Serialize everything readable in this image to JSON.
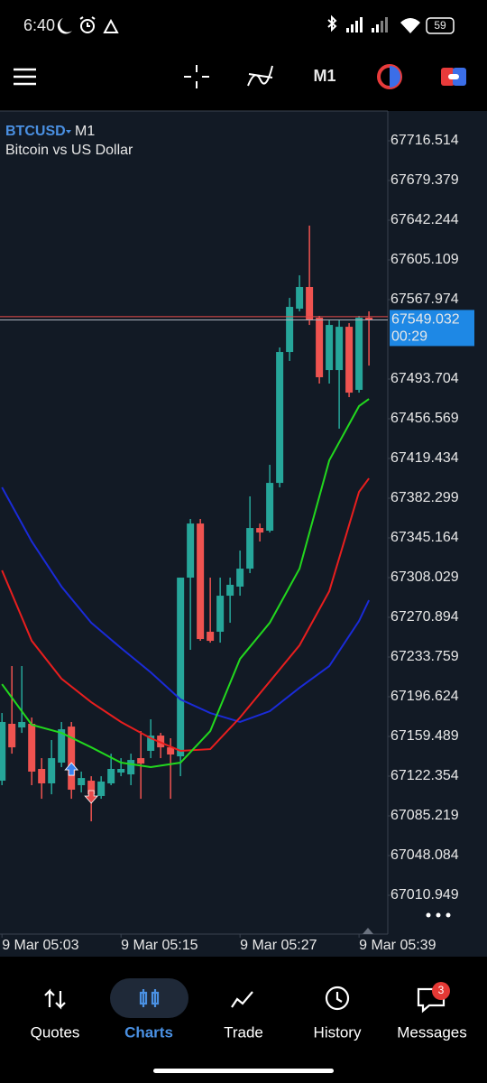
{
  "status_bar": {
    "time": "6:40",
    "battery": 59
  },
  "toolbar": {
    "timeframe": "M1"
  },
  "chart_data": {
    "type": "candlestick",
    "symbol": "BTCUSD",
    "timeframe": "M1",
    "description": "Bitcoin vs US Dollar",
    "up_color": "#26a69a",
    "down_color": "#ef5350",
    "open": [
      67118.1,
      67171.3,
      67167.9,
      67171.3,
      67129.1,
      67115.6,
      67135.0,
      67168.7,
      67113.9,
      67118.1,
      67103.8,
      67115.6,
      67125.7,
      67124.0,
      67139.2,
      67146.0,
      67160.3,
      67149.3,
      67140.9,
      67308.0,
      67358.6,
      67257.4,
      67257.4,
      67291.1,
      67299.6,
      67316.4,
      67354.4,
      67351.9,
      67396.6,
      67519.0,
      67559.5,
      67579.8,
      67551.1,
      67502.1,
      67502.1,
      67542.6,
      67483.6,
      67551.1
    ],
    "high": [
      67181.4,
      67225.3,
      67225.3,
      67177.2,
      67139.2,
      67156.1,
      67173.0,
      67173.0,
      67126.6,
      67122.3,
      67122.3,
      67143.4,
      67139.2,
      67143.4,
      67164.5,
      67175.5,
      67162.8,
      67157.8,
      67308.0,
      67362.9,
      67362.9,
      67308.0,
      67308.0,
      67308.0,
      67333.3,
      67384.0,
      67358.6,
      67413.5,
      67523.2,
      67569.6,
      67590.7,
      67637.2,
      67552.8,
      67548.5,
      67548.5,
      67546.0,
      67552.8,
      67557.0
    ],
    "low": [
      67113.9,
      67143.4,
      67162.8,
      67113.9,
      67101.2,
      67105.4,
      67130.8,
      67101.2,
      67107.1,
      67080.1,
      67101.2,
      67113.9,
      67122.3,
      67113.9,
      67101.2,
      67139.2,
      67139.2,
      67101.2,
      67122.3,
      67240.5,
      67248.9,
      67247.2,
      67247.2,
      67265.8,
      67291.1,
      67312.2,
      67341.8,
      67350.2,
      67392.4,
      67510.6,
      67557.0,
      67544.3,
      67489.5,
      67489.5,
      67447.3,
      67476.8,
      67481.0,
      67506.3
    ],
    "close": [
      67173.0,
      67149.3,
      67173.0,
      67126.6,
      67115.6,
      67139.2,
      67166.2,
      67109.7,
      67120.6,
      67105.4,
      67117.3,
      67129.1,
      67129.1,
      67137.5,
      67134.1,
      67160.3,
      67149.3,
      67142.6,
      67308.0,
      67358.6,
      67250.6,
      67248.9,
      67291.1,
      67301.3,
      67316.4,
      67354.4,
      67350.2,
      67396.6,
      67519.0,
      67561.2,
      67579.8,
      67548.5,
      67495.4,
      67544.3,
      67542.6,
      67481.0,
      67551.1,
      67549.0
    ],
    "series": [
      {
        "color": "#1a2bd8",
        "x": [
          0,
          3,
          6,
          9,
          12,
          15,
          18,
          21,
          24,
          27,
          30,
          33,
          36,
          37
        ],
        "values": [
          67392.4,
          67341.8,
          67299.6,
          67265.8,
          67242.2,
          67219.4,
          67194.1,
          67181.4,
          67173.0,
          67183.1,
          67205.0,
          67225.3,
          67267.5,
          67286.9
        ]
      },
      {
        "color": "#e81e1e",
        "x": [
          0,
          3,
          6,
          9,
          12,
          15,
          18,
          21,
          24,
          27,
          30,
          33,
          36,
          37
        ],
        "values": [
          67314.8,
          67248.9,
          67213.5,
          67191.5,
          67173.0,
          67157.8,
          67146.0,
          67147.6,
          67177.2,
          67210.9,
          67244.7,
          67295.3,
          67388.2,
          67400.8
        ]
      },
      {
        "color": "#22d81e",
        "x": [
          0,
          3,
          6,
          9,
          12,
          15,
          18,
          21,
          24,
          27,
          30,
          33,
          36,
          37
        ],
        "values": [
          67208.4,
          67170.4,
          67162.8,
          67149.3,
          67135.0,
          67130.8,
          67135.0,
          67164.5,
          67232.0,
          67265.8,
          67316.4,
          67417.7,
          67468.4,
          67475.1
        ]
      }
    ],
    "markers": [
      {
        "x": 7,
        "price": 67128.2,
        "direction": "up",
        "color": "#3b82f0"
      },
      {
        "x": 9,
        "price": 67103.8,
        "direction": "down",
        "color": "#e84a4a"
      }
    ],
    "last_price": 67549.032,
    "ask_price": 67552.0,
    "countdown": "00:29",
    "price_label_color": "#1e88e5",
    "xlim": [
      -0.2,
      38.9
    ],
    "xticks": [
      {
        "value": 0,
        "label": "9 Mar 05:03"
      },
      {
        "value": 12,
        "label": "9 Mar 05:15"
      },
      {
        "value": 24,
        "label": "9 Mar 05:27"
      },
      {
        "value": 36,
        "label": "9 Mar 05:39"
      }
    ],
    "ylim": [
      66974.65,
      67742.68
    ],
    "yticks": [
      67716.514,
      67679.379,
      67642.244,
      67605.109,
      67567.974,
      67493.704,
      67456.569,
      67419.434,
      67382.299,
      67345.164,
      67308.029,
      67270.894,
      67233.759,
      67196.624,
      67159.489,
      67122.354,
      67085.219,
      67048.084,
      67010.949
    ],
    "grid": false
  },
  "nav": {
    "active": 1,
    "items": [
      {
        "label": "Quotes"
      },
      {
        "label": "Charts"
      },
      {
        "label": "Trade"
      },
      {
        "label": "History"
      },
      {
        "label": "Messages",
        "badge": 3
      }
    ]
  }
}
